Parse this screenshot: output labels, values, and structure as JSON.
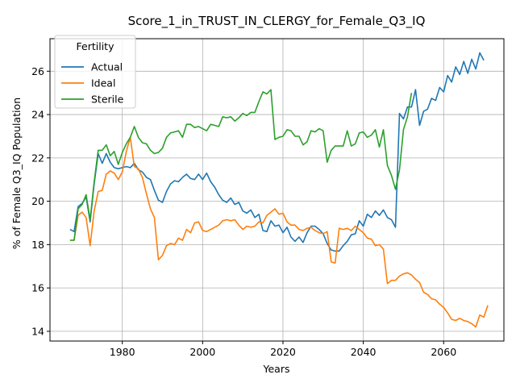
{
  "chart_data": {
    "type": "line",
    "title": "Score_1_in_TRUST_IN_CLERGY_for_Female_Q3_IQ",
    "xlabel": "Years",
    "ylabel": "% of Female Q3_IQ Population",
    "xlim": [
      1962,
      2075
    ],
    "ylim": [
      13.55,
      27.5
    ],
    "x_ticks": [
      1980,
      2000,
      2020,
      2040,
      2060
    ],
    "y_ticks": [
      14,
      16,
      18,
      20,
      22,
      24,
      26
    ],
    "grid": true,
    "legend": {
      "title": "Fertility",
      "placement": "upper-left"
    },
    "series": [
      {
        "name": "Actual",
        "color": "#1f77b4",
        "points": [
          [
            1967,
            18.7
          ],
          [
            1968,
            18.6
          ],
          [
            1969,
            19.75
          ],
          [
            1970,
            19.9
          ],
          [
            1971,
            20.2
          ],
          [
            1972,
            19.05
          ],
          [
            1973,
            20.8
          ],
          [
            1974,
            22.2
          ],
          [
            1975,
            21.75
          ],
          [
            1976,
            22.2
          ],
          [
            1977,
            21.8
          ],
          [
            1978,
            21.55
          ],
          [
            1979,
            21.5
          ],
          [
            1980,
            21.55
          ],
          [
            1981,
            21.6
          ],
          [
            1982,
            21.55
          ],
          [
            1983,
            21.75
          ],
          [
            1984,
            21.45
          ],
          [
            1985,
            21.35
          ],
          [
            1986,
            21.1
          ],
          [
            1987,
            21.0
          ],
          [
            1988,
            20.5
          ],
          [
            1989,
            20.05
          ],
          [
            1990,
            19.95
          ],
          [
            1991,
            20.45
          ],
          [
            1992,
            20.8
          ],
          [
            1993,
            20.95
          ],
          [
            1994,
            20.9
          ],
          [
            1995,
            21.1
          ],
          [
            1996,
            21.25
          ],
          [
            1997,
            21.05
          ],
          [
            1998,
            21.0
          ],
          [
            1999,
            21.25
          ],
          [
            2000,
            21.0
          ],
          [
            2001,
            21.3
          ],
          [
            2002,
            20.9
          ],
          [
            2003,
            20.65
          ],
          [
            2004,
            20.3
          ],
          [
            2005,
            20.05
          ],
          [
            2006,
            19.95
          ],
          [
            2007,
            20.15
          ],
          [
            2008,
            19.85
          ],
          [
            2009,
            19.95
          ],
          [
            2010,
            19.55
          ],
          [
            2011,
            19.45
          ],
          [
            2012,
            19.6
          ],
          [
            2013,
            19.25
          ],
          [
            2014,
            19.4
          ],
          [
            2015,
            18.65
          ],
          [
            2016,
            18.6
          ],
          [
            2017,
            19.1
          ],
          [
            2018,
            18.85
          ],
          [
            2019,
            18.9
          ],
          [
            2020,
            18.55
          ],
          [
            2021,
            18.8
          ],
          [
            2022,
            18.35
          ],
          [
            2023,
            18.15
          ],
          [
            2024,
            18.35
          ],
          [
            2025,
            18.1
          ],
          [
            2026,
            18.55
          ],
          [
            2027,
            18.85
          ],
          [
            2028,
            18.85
          ],
          [
            2029,
            18.7
          ],
          [
            2030,
            18.5
          ],
          [
            2031,
            18.05
          ],
          [
            2032,
            17.75
          ],
          [
            2033,
            17.7
          ],
          [
            2034,
            17.7
          ],
          [
            2035,
            17.95
          ],
          [
            2036,
            18.15
          ],
          [
            2037,
            18.45
          ],
          [
            2038,
            18.5
          ],
          [
            2039,
            19.1
          ],
          [
            2040,
            18.85
          ],
          [
            2041,
            19.4
          ],
          [
            2042,
            19.25
          ],
          [
            2043,
            19.55
          ],
          [
            2044,
            19.35
          ],
          [
            2045,
            19.6
          ],
          [
            2046,
            19.25
          ],
          [
            2047,
            19.15
          ],
          [
            2048,
            18.8
          ],
          [
            2049,
            24.05
          ],
          [
            2050,
            23.8
          ],
          [
            2051,
            24.35
          ],
          [
            2052,
            24.35
          ],
          [
            2053,
            25.15
          ],
          [
            2054,
            23.5
          ],
          [
            2055,
            24.15
          ],
          [
            2056,
            24.25
          ],
          [
            2057,
            24.75
          ],
          [
            2058,
            24.65
          ],
          [
            2059,
            25.25
          ],
          [
            2060,
            25.05
          ],
          [
            2061,
            25.8
          ],
          [
            2062,
            25.5
          ],
          [
            2063,
            26.2
          ],
          [
            2064,
            25.85
          ],
          [
            2065,
            26.45
          ],
          [
            2066,
            25.9
          ],
          [
            2067,
            26.55
          ],
          [
            2068,
            26.1
          ],
          [
            2069,
            26.85
          ],
          [
            2070,
            26.5
          ]
        ]
      },
      {
        "name": "Ideal",
        "color": "#ff7f0e",
        "points": [
          [
            1967,
            18.2
          ],
          [
            1968,
            18.2
          ],
          [
            1969,
            19.35
          ],
          [
            1970,
            19.5
          ],
          [
            1971,
            19.25
          ],
          [
            1972,
            17.95
          ],
          [
            1973,
            19.55
          ],
          [
            1974,
            20.45
          ],
          [
            1975,
            20.5
          ],
          [
            1976,
            21.25
          ],
          [
            1977,
            21.4
          ],
          [
            1978,
            21.3
          ],
          [
            1979,
            21.0
          ],
          [
            1980,
            21.35
          ],
          [
            1981,
            22.3
          ],
          [
            1982,
            22.95
          ],
          [
            1983,
            21.6
          ],
          [
            1984,
            21.5
          ],
          [
            1985,
            21.1
          ],
          [
            1986,
            20.35
          ],
          [
            1987,
            19.65
          ],
          [
            1988,
            19.25
          ],
          [
            1989,
            17.3
          ],
          [
            1990,
            17.5
          ],
          [
            1991,
            17.95
          ],
          [
            1992,
            18.05
          ],
          [
            1993,
            18.0
          ],
          [
            1994,
            18.3
          ],
          [
            1995,
            18.2
          ],
          [
            1996,
            18.7
          ],
          [
            1997,
            18.55
          ],
          [
            1998,
            19.0
          ],
          [
            1999,
            19.05
          ],
          [
            2000,
            18.65
          ],
          [
            2001,
            18.6
          ],
          [
            2002,
            18.7
          ],
          [
            2003,
            18.8
          ],
          [
            2004,
            18.9
          ],
          [
            2005,
            19.1
          ],
          [
            2006,
            19.15
          ],
          [
            2007,
            19.1
          ],
          [
            2008,
            19.15
          ],
          [
            2009,
            18.9
          ],
          [
            2010,
            18.7
          ],
          [
            2011,
            18.85
          ],
          [
            2012,
            18.8
          ],
          [
            2013,
            18.85
          ],
          [
            2014,
            19.05
          ],
          [
            2015,
            19.0
          ],
          [
            2016,
            19.35
          ],
          [
            2017,
            19.5
          ],
          [
            2018,
            19.65
          ],
          [
            2019,
            19.4
          ],
          [
            2020,
            19.45
          ],
          [
            2021,
            19.05
          ],
          [
            2022,
            18.9
          ],
          [
            2023,
            18.9
          ],
          [
            2024,
            18.7
          ],
          [
            2025,
            18.65
          ],
          [
            2026,
            18.75
          ],
          [
            2027,
            18.8
          ],
          [
            2028,
            18.65
          ],
          [
            2029,
            18.55
          ],
          [
            2030,
            18.5
          ],
          [
            2031,
            18.6
          ],
          [
            2032,
            17.2
          ],
          [
            2033,
            17.15
          ],
          [
            2034,
            18.75
          ],
          [
            2035,
            18.7
          ],
          [
            2036,
            18.75
          ],
          [
            2037,
            18.65
          ],
          [
            2038,
            18.85
          ],
          [
            2039,
            18.7
          ],
          [
            2040,
            18.55
          ],
          [
            2041,
            18.3
          ],
          [
            2042,
            18.25
          ],
          [
            2043,
            17.95
          ],
          [
            2044,
            18.0
          ],
          [
            2045,
            17.8
          ],
          [
            2046,
            16.2
          ],
          [
            2047,
            16.35
          ],
          [
            2048,
            16.35
          ],
          [
            2049,
            16.55
          ],
          [
            2050,
            16.65
          ],
          [
            2051,
            16.7
          ],
          [
            2052,
            16.6
          ],
          [
            2053,
            16.4
          ],
          [
            2054,
            16.25
          ],
          [
            2055,
            15.8
          ],
          [
            2056,
            15.7
          ],
          [
            2057,
            15.5
          ],
          [
            2058,
            15.45
          ],
          [
            2059,
            15.25
          ],
          [
            2060,
            15.1
          ],
          [
            2061,
            14.85
          ],
          [
            2062,
            14.55
          ],
          [
            2063,
            14.5
          ],
          [
            2064,
            14.6
          ],
          [
            2065,
            14.5
          ],
          [
            2066,
            14.45
          ],
          [
            2067,
            14.35
          ],
          [
            2068,
            14.2
          ],
          [
            2069,
            14.75
          ],
          [
            2070,
            14.65
          ],
          [
            2071,
            15.2
          ]
        ]
      },
      {
        "name": "Sterile",
        "color": "#2ca02c",
        "points": [
          [
            1967,
            18.2
          ],
          [
            1968,
            18.2
          ],
          [
            1969,
            19.65
          ],
          [
            1970,
            19.85
          ],
          [
            1971,
            20.3
          ],
          [
            1972,
            19.15
          ],
          [
            1973,
            20.9
          ],
          [
            1974,
            22.35
          ],
          [
            1975,
            22.35
          ],
          [
            1976,
            22.6
          ],
          [
            1977,
            22.1
          ],
          [
            1978,
            22.3
          ],
          [
            1979,
            21.7
          ],
          [
            1980,
            22.25
          ],
          [
            1981,
            22.65
          ],
          [
            1982,
            22.95
          ],
          [
            1983,
            23.45
          ],
          [
            1984,
            22.95
          ],
          [
            1985,
            22.7
          ],
          [
            1986,
            22.65
          ],
          [
            1987,
            22.35
          ],
          [
            1988,
            22.2
          ],
          [
            1989,
            22.25
          ],
          [
            1990,
            22.45
          ],
          [
            1991,
            22.95
          ],
          [
            1992,
            23.15
          ],
          [
            1993,
            23.2
          ],
          [
            1994,
            23.25
          ],
          [
            1995,
            22.95
          ],
          [
            1996,
            23.55
          ],
          [
            1997,
            23.55
          ],
          [
            1998,
            23.4
          ],
          [
            1999,
            23.45
          ],
          [
            2000,
            23.35
          ],
          [
            2001,
            23.25
          ],
          [
            2002,
            23.55
          ],
          [
            2003,
            23.5
          ],
          [
            2004,
            23.45
          ],
          [
            2005,
            23.9
          ],
          [
            2006,
            23.85
          ],
          [
            2007,
            23.9
          ],
          [
            2008,
            23.7
          ],
          [
            2009,
            23.85
          ],
          [
            2010,
            24.05
          ],
          [
            2011,
            23.95
          ],
          [
            2012,
            24.1
          ],
          [
            2013,
            24.1
          ],
          [
            2014,
            24.6
          ],
          [
            2015,
            25.05
          ],
          [
            2016,
            24.95
          ],
          [
            2017,
            25.15
          ],
          [
            2018,
            22.85
          ],
          [
            2019,
            22.95
          ],
          [
            2020,
            23.0
          ],
          [
            2021,
            23.3
          ],
          [
            2022,
            23.25
          ],
          [
            2023,
            23.0
          ],
          [
            2024,
            23.0
          ],
          [
            2025,
            22.6
          ],
          [
            2026,
            22.75
          ],
          [
            2027,
            23.25
          ],
          [
            2028,
            23.2
          ],
          [
            2029,
            23.35
          ],
          [
            2030,
            23.25
          ],
          [
            2031,
            21.8
          ],
          [
            2032,
            22.35
          ],
          [
            2033,
            22.55
          ],
          [
            2034,
            22.55
          ],
          [
            2035,
            22.55
          ],
          [
            2036,
            23.25
          ],
          [
            2037,
            22.55
          ],
          [
            2038,
            22.65
          ],
          [
            2039,
            23.15
          ],
          [
            2040,
            23.2
          ],
          [
            2041,
            22.95
          ],
          [
            2042,
            23.05
          ],
          [
            2043,
            23.3
          ],
          [
            2044,
            22.5
          ],
          [
            2045,
            23.3
          ],
          [
            2046,
            21.65
          ],
          [
            2047,
            21.2
          ],
          [
            2048,
            20.55
          ],
          [
            2049,
            21.45
          ],
          [
            2050,
            23.3
          ],
          [
            2051,
            23.9
          ],
          [
            2052,
            25.0
          ]
        ]
      }
    ]
  }
}
